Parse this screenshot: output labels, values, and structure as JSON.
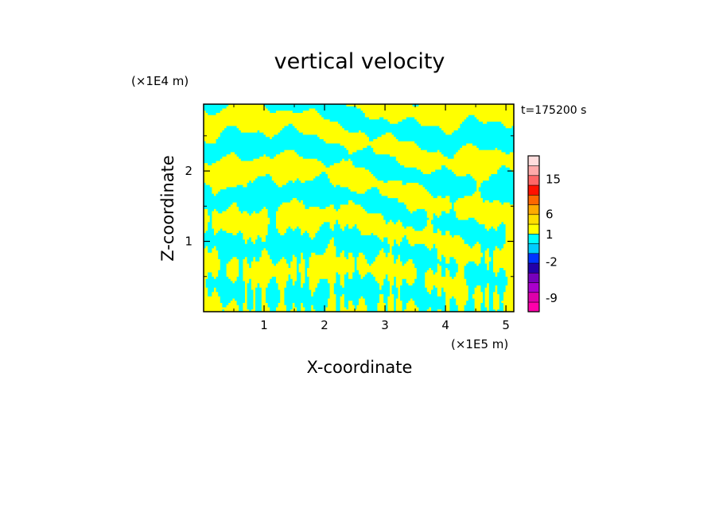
{
  "chart_data": {
    "type": "heatmap",
    "title": "vertical velocity",
    "xlabel": "X-coordinate",
    "ylabel": "Z-coordinate",
    "x_unit": "(×1E5 m)",
    "y_unit": "(×1E4 m)",
    "time_label": "t=175200 s",
    "xlim": [
      0,
      5.13
    ],
    "ylim": [
      0,
      2.95
    ],
    "x_ticks": [
      {
        "value": 1,
        "label": "1"
      },
      {
        "value": 2,
        "label": "2"
      },
      {
        "value": 3,
        "label": "3"
      },
      {
        "value": 4,
        "label": "4"
      },
      {
        "value": 5,
        "label": "5"
      }
    ],
    "y_ticks": [
      {
        "value": 1,
        "label": "1"
      },
      {
        "value": 2,
        "label": "2"
      }
    ],
    "positive_color": "#ffff00",
    "negative_color": "#00ffff",
    "colorbar": {
      "colors": [
        "#ff00aa",
        "#dd00aa",
        "#aa00cc",
        "#7700bb",
        "#2200aa",
        "#0033ff",
        "#00ccff",
        "#00ffff",
        "#ffff00",
        "#ffdd00",
        "#ffaa00",
        "#ff6600",
        "#ff1100",
        "#ff6666",
        "#ffaaaa",
        "#ffdddd"
      ],
      "labels": [
        {
          "value": -9,
          "label": "-9"
        },
        {
          "value": -2,
          "label": "-2"
        },
        {
          "value": 1,
          "label": "1"
        },
        {
          "value": 6,
          "label": "6"
        },
        {
          "value": 15,
          "label": "15"
        }
      ]
    }
  }
}
